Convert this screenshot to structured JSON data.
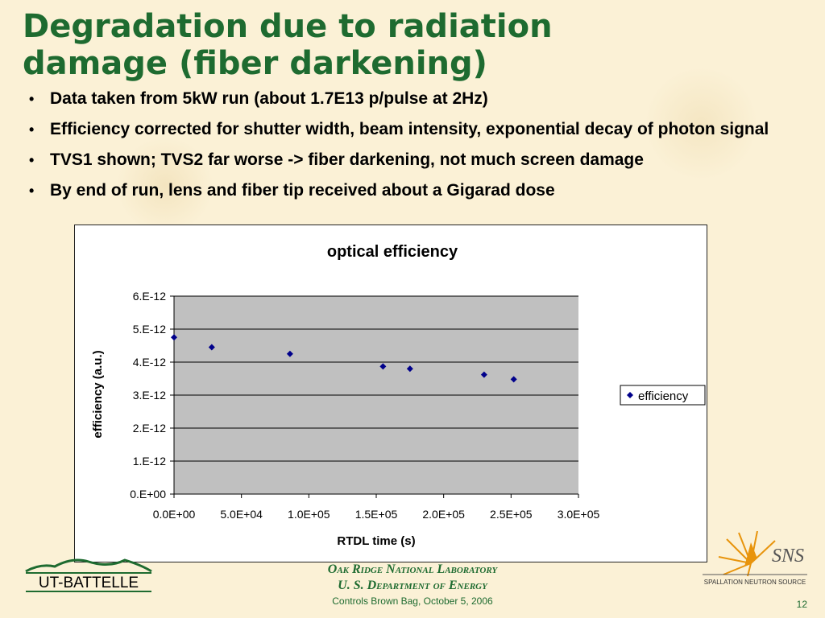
{
  "slide": {
    "title_line1": "Degradation due to radiation",
    "title_line2": "damage (fiber darkening)",
    "bullets": [
      "Data taken from 5kW run (about 1.7E13 p/pulse at 2Hz)",
      "Efficiency corrected for shutter width, beam intensity, exponential  decay of photon signal",
      "TVS1 shown; TVS2 far worse -> fiber darkening, not much screen damage",
      "By end of run, lens and fiber tip received about a Gigarad dose"
    ],
    "bullet_glyph": "•"
  },
  "chart_data": {
    "type": "scatter",
    "title": "optical efficiency",
    "xlabel": "RTDL time (s)",
    "ylabel": "efficiency (a.u.)",
    "xlim": [
      0,
      300000
    ],
    "ylim": [
      0,
      6e-12
    ],
    "x_ticks": [
      "0.0E+00",
      "5.0E+04",
      "1.0E+05",
      "1.5E+05",
      "2.0E+05",
      "2.5E+05",
      "3.0E+05"
    ],
    "y_ticks": [
      "0.E+00",
      "1.E-12",
      "2.E-12",
      "3.E-12",
      "4.E-12",
      "5.E-12",
      "6.E-12"
    ],
    "grid": "horizontal",
    "legend": "right",
    "series": [
      {
        "name": "efficiency",
        "marker": "diamond",
        "color": "#00008b",
        "x": [
          0,
          28000,
          86000,
          155000,
          175000,
          230000,
          252000
        ],
        "y": [
          4.75e-12,
          4.45e-12,
          4.25e-12,
          3.87e-12,
          3.8e-12,
          3.62e-12,
          3.48e-12
        ]
      }
    ],
    "plot_bg": "#c0c0c0"
  },
  "footer": {
    "lab_name": "Oak Ridge National Laboratory",
    "department": "U. S. Department of Energy",
    "event": "Controls Brown Bag, October 5, 2006",
    "page_number": "12",
    "left_logo_text": "UT-BATTELLE",
    "right_logo_text": "SNS",
    "right_logo_subtext": "SPALLATION NEUTRON SOURCE"
  },
  "colors": {
    "title_green": "#1e6b30",
    "marker_navy": "#00008b",
    "sns_orange": "#e8940c"
  }
}
